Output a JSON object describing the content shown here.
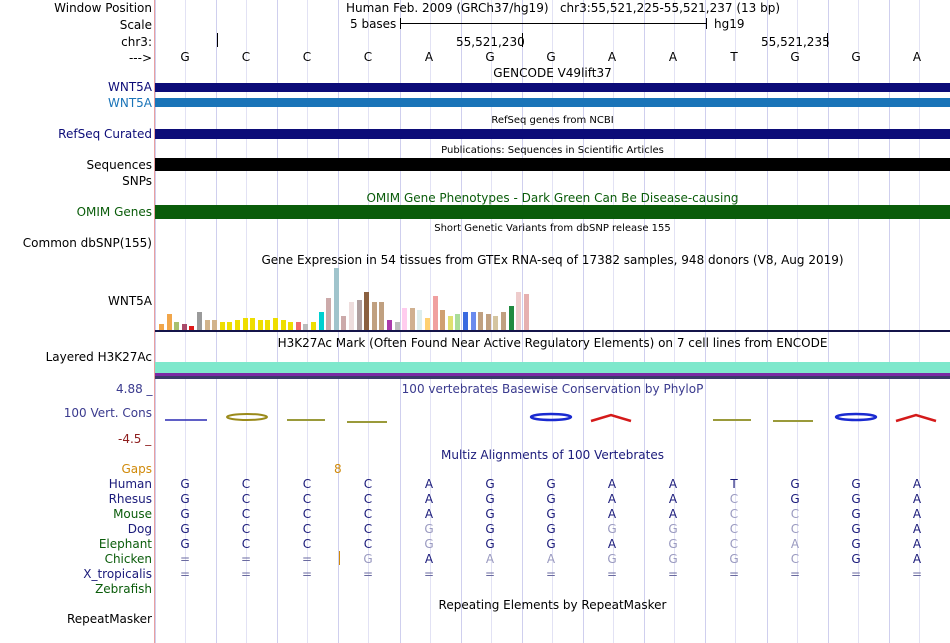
{
  "header": {
    "window_position_label": "Window Position",
    "window_position_value": "Human Feb. 2009 (GRCh37/hg19)   chr3:55,521,225-55,521,237 (13 bp)",
    "scale_label": "Scale",
    "scale_text": "5 bases",
    "scale_assembly": "hg19",
    "chrom_label": "chr3:",
    "coord_1": "55,521,230",
    "coord_2": "55,521,235",
    "strand_label": "--->"
  },
  "sequence": [
    "G",
    "C",
    "C",
    "C",
    "A",
    "G",
    "G",
    "A",
    "A",
    "T",
    "G",
    "G",
    "A"
  ],
  "tracks": {
    "gencode": {
      "title": "GENCODE V49lift37",
      "label_1": "WNT5A",
      "label_2": "WNT5A",
      "color_1": "#0c0c78",
      "color_2": "#1a74b8"
    },
    "refseq": {
      "title": "RefSeq genes from NCBI",
      "label": "RefSeq Curated",
      "color": "#0c0c78"
    },
    "publications": {
      "title": "Publications: Sequences in Scientific Articles",
      "label": "Sequences",
      "color": "#000000"
    },
    "snps_label": "SNPs",
    "omim": {
      "title": "OMIM Gene Phenotypes - Dark Green Can Be Disease-causing",
      "label": "OMIM Genes",
      "color": "#0a5c0a"
    },
    "dbsnp": {
      "title": "Short Genetic Variants from dbSNP release 155",
      "label": "Common dbSNP(155)"
    },
    "gtex": {
      "title": "Gene Expression in 54 tissues from GTEx RNA-seq of 17382 samples, 948 donors (V8, Aug 2019)",
      "label": "WNT5A"
    },
    "h3k27ac": {
      "title": "H3K27Ac Mark (Often Found Near Active Regulatory Elements) on 7 cell lines from ENCODE",
      "label": "Layered H3K27Ac"
    },
    "phylop": {
      "title": "100 vertebrates Basewise Conservation by PhyloP",
      "label": "100 Vert. Cons",
      "max": "4.88 _",
      "min": "-4.5 _"
    },
    "multiz": {
      "title": "Multiz Alignments of 100 Vertebrates",
      "gaps_label": "Gaps",
      "gaps_value": "8"
    },
    "repeatmasker": {
      "title": "Repeating Elements by RepeatMasker",
      "label": "RepeatMasker"
    }
  },
  "alignment": [
    {
      "species": "Human",
      "bases": [
        "G",
        "C",
        "C",
        "C",
        "A",
        "G",
        "G",
        "A",
        "A",
        "T",
        "G",
        "G",
        "A"
      ]
    },
    {
      "species": "Rhesus",
      "bases": [
        "G",
        "C",
        "C",
        "C",
        "A",
        "G",
        "G",
        "A",
        "A",
        "C",
        "G",
        "G",
        "A"
      ]
    },
    {
      "species": "Mouse",
      "bases": [
        "G",
        "C",
        "C",
        "C",
        "A",
        "G",
        "G",
        "A",
        "A",
        "C",
        "C",
        "G",
        "A"
      ]
    },
    {
      "species": "Dog",
      "bases": [
        "G",
        "C",
        "C",
        "C",
        "G",
        "G",
        "G",
        "G",
        "G",
        "C",
        "C",
        "G",
        "A"
      ]
    },
    {
      "species": "Elephant",
      "bases": [
        "G",
        "C",
        "C",
        "C",
        "G",
        "G",
        "G",
        "A",
        "G",
        "C",
        "A",
        "G",
        "A"
      ]
    },
    {
      "species": "Chicken",
      "bases": [
        "=",
        "=",
        "=",
        "G",
        "A",
        "A",
        "A",
        "G",
        "G",
        "G",
        "C",
        "G",
        "A"
      ]
    },
    {
      "species": "X_tropicalis",
      "bases": [
        "=",
        "=",
        "=",
        "=",
        "=",
        "=",
        "=",
        "=",
        "=",
        "=",
        "=",
        "=",
        "="
      ]
    },
    {
      "species": "Zebrafish",
      "bases": [
        "",
        "",
        "",
        "",
        "",
        "",
        "",
        "",
        "",
        "",
        "",
        "",
        ""
      ]
    }
  ]
}
